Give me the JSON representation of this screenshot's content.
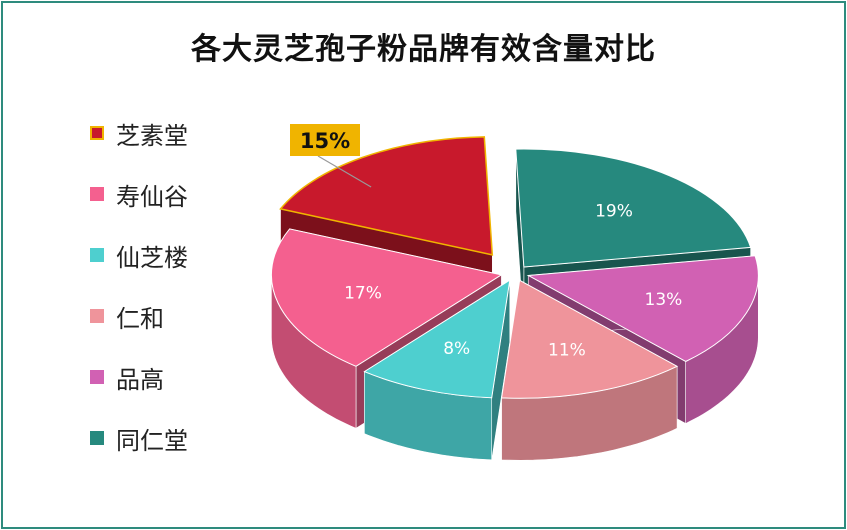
{
  "chart_data": {
    "type": "pie",
    "title": "各大灵芝孢子粉品牌有效含量对比",
    "categories": [
      "芝素堂",
      "寿仙谷",
      "仙芝楼",
      "仁和",
      "品高",
      "同仁堂"
    ],
    "values": [
      15,
      17,
      8,
      11,
      13,
      19
    ],
    "value_labels": [
      "15%",
      "17%",
      "8%",
      "11%",
      "13%",
      "19%"
    ],
    "colors": [
      "#c8192c",
      "#f4608f",
      "#4ecfcf",
      "#ef949b",
      "#d161b3",
      "#26897e"
    ],
    "highlight": {
      "category": "芝素堂",
      "label": "15%",
      "callout_color": "#f0b400"
    },
    "legend_position": "left",
    "style": "3d-exploded"
  }
}
